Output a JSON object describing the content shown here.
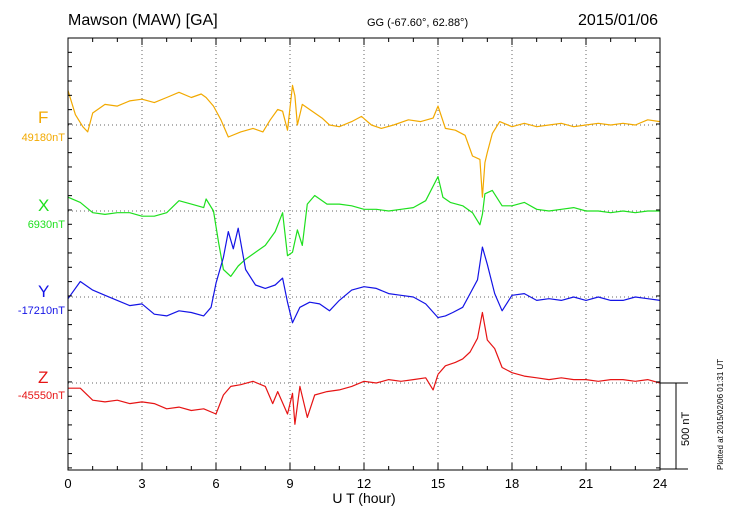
{
  "header": {
    "station": "Mawson (MAW)  [GA]",
    "coords": "GG (-67.60°,  62.88°)",
    "date": "2015/01/06"
  },
  "plotted_note": "Plotted at 2015/02/06 01:31  UT",
  "scale_label": "500 nT",
  "chart_data": {
    "type": "line",
    "xlabel": "U T (hour)",
    "xlim": [
      0,
      24
    ],
    "xticks": [
      0,
      3,
      6,
      9,
      12,
      15,
      18,
      21,
      24
    ],
    "grid": true,
    "scale_bar_nT": 500,
    "series": [
      {
        "name": "F",
        "baseline_label": "49180nT",
        "color": "#f2a900",
        "baseline_nT": 0,
        "values": [
          [
            0,
            200
          ],
          [
            0.3,
            60
          ],
          [
            0.6,
            -10
          ],
          [
            0.8,
            -40
          ],
          [
            1.0,
            70
          ],
          [
            1.5,
            120
          ],
          [
            2.0,
            110
          ],
          [
            2.5,
            140
          ],
          [
            3.0,
            150
          ],
          [
            3.5,
            130
          ],
          [
            4.0,
            160
          ],
          [
            4.5,
            190
          ],
          [
            5.0,
            160
          ],
          [
            5.4,
            180
          ],
          [
            5.6,
            160
          ],
          [
            5.9,
            110
          ],
          [
            6.2,
            30
          ],
          [
            6.5,
            -70
          ],
          [
            7.0,
            -40
          ],
          [
            7.5,
            -20
          ],
          [
            7.9,
            -40
          ],
          [
            8.2,
            30
          ],
          [
            8.5,
            90
          ],
          [
            8.7,
            80
          ],
          [
            8.9,
            -30
          ],
          [
            9.1,
            230
          ],
          [
            9.2,
            170
          ],
          [
            9.3,
            0
          ],
          [
            9.5,
            120
          ],
          [
            9.9,
            80
          ],
          [
            10.3,
            40
          ],
          [
            10.6,
            0
          ],
          [
            11.0,
            -10
          ],
          [
            11.5,
            20
          ],
          [
            11.9,
            50
          ],
          [
            12.3,
            0
          ],
          [
            12.7,
            -20
          ],
          [
            13.2,
            0
          ],
          [
            13.8,
            30
          ],
          [
            14.3,
            20
          ],
          [
            14.8,
            40
          ],
          [
            15.0,
            110
          ],
          [
            15.3,
            -20
          ],
          [
            15.7,
            -30
          ],
          [
            16.1,
            -60
          ],
          [
            16.4,
            -180
          ],
          [
            16.7,
            -200
          ],
          [
            16.8,
            -420
          ],
          [
            16.9,
            -220
          ],
          [
            17.0,
            -160
          ],
          [
            17.2,
            -50
          ],
          [
            17.5,
            20
          ],
          [
            18.0,
            -10
          ],
          [
            18.5,
            10
          ],
          [
            19.0,
            -10
          ],
          [
            19.5,
            0
          ],
          [
            20.0,
            10
          ],
          [
            20.5,
            -10
          ],
          [
            21.0,
            0
          ],
          [
            21.5,
            10
          ],
          [
            22.0,
            0
          ],
          [
            22.5,
            10
          ],
          [
            23.0,
            0
          ],
          [
            23.5,
            30
          ],
          [
            24.0,
            20
          ]
        ]
      },
      {
        "name": "X",
        "baseline_label": "6930nT",
        "color": "#1ee01e",
        "baseline_nT": 0,
        "values": [
          [
            0,
            80
          ],
          [
            0.5,
            50
          ],
          [
            1.0,
            -10
          ],
          [
            1.5,
            -20
          ],
          [
            2.0,
            -10
          ],
          [
            2.5,
            -10
          ],
          [
            3.0,
            -30
          ],
          [
            3.5,
            -30
          ],
          [
            4.0,
            -10
          ],
          [
            4.5,
            60
          ],
          [
            5.0,
            40
          ],
          [
            5.5,
            20
          ],
          [
            5.6,
            70
          ],
          [
            5.9,
            0
          ],
          [
            6.1,
            -180
          ],
          [
            6.3,
            -340
          ],
          [
            6.6,
            -380
          ],
          [
            6.9,
            -320
          ],
          [
            7.2,
            -280
          ],
          [
            7.6,
            -240
          ],
          [
            8.0,
            -200
          ],
          [
            8.4,
            -120
          ],
          [
            8.7,
            -10
          ],
          [
            8.9,
            -260
          ],
          [
            9.1,
            -240
          ],
          [
            9.3,
            -110
          ],
          [
            9.5,
            -200
          ],
          [
            9.7,
            40
          ],
          [
            10.0,
            90
          ],
          [
            10.5,
            40
          ],
          [
            11.0,
            40
          ],
          [
            11.5,
            30
          ],
          [
            12.0,
            10
          ],
          [
            12.5,
            10
          ],
          [
            13.0,
            0
          ],
          [
            13.5,
            10
          ],
          [
            14.0,
            20
          ],
          [
            14.5,
            60
          ],
          [
            15.0,
            200
          ],
          [
            15.2,
            80
          ],
          [
            15.5,
            50
          ],
          [
            16.0,
            30
          ],
          [
            16.4,
            -10
          ],
          [
            16.7,
            -80
          ],
          [
            16.8,
            -20
          ],
          [
            16.9,
            100
          ],
          [
            17.2,
            120
          ],
          [
            17.6,
            30
          ],
          [
            18.0,
            30
          ],
          [
            18.5,
            50
          ],
          [
            19.0,
            10
          ],
          [
            19.5,
            0
          ],
          [
            20.0,
            10
          ],
          [
            20.5,
            20
          ],
          [
            21.0,
            0
          ],
          [
            21.5,
            0
          ],
          [
            22.0,
            -10
          ],
          [
            22.5,
            0
          ],
          [
            23.0,
            -10
          ],
          [
            23.5,
            0
          ],
          [
            24.0,
            0
          ]
        ]
      },
      {
        "name": "Y",
        "baseline_label": "-17210nT",
        "color": "#1414e6",
        "baseline_nT": 0,
        "values": [
          [
            0,
            -10
          ],
          [
            0.5,
            90
          ],
          [
            1.0,
            40
          ],
          [
            1.5,
            10
          ],
          [
            2.0,
            -20
          ],
          [
            2.5,
            -50
          ],
          [
            3.0,
            -40
          ],
          [
            3.5,
            -100
          ],
          [
            4.0,
            -110
          ],
          [
            4.5,
            -80
          ],
          [
            5.0,
            -90
          ],
          [
            5.5,
            -110
          ],
          [
            5.8,
            -60
          ],
          [
            6.0,
            80
          ],
          [
            6.3,
            230
          ],
          [
            6.5,
            380
          ],
          [
            6.7,
            280
          ],
          [
            6.9,
            400
          ],
          [
            7.2,
            160
          ],
          [
            7.6,
            70
          ],
          [
            8.0,
            50
          ],
          [
            8.4,
            70
          ],
          [
            8.7,
            110
          ],
          [
            8.9,
            -30
          ],
          [
            9.1,
            -150
          ],
          [
            9.4,
            -60
          ],
          [
            9.8,
            -30
          ],
          [
            10.2,
            -40
          ],
          [
            10.6,
            -80
          ],
          [
            11.0,
            -20
          ],
          [
            11.5,
            40
          ],
          [
            12.0,
            60
          ],
          [
            12.5,
            50
          ],
          [
            13.0,
            20
          ],
          [
            13.5,
            10
          ],
          [
            14.0,
            0
          ],
          [
            14.5,
            -40
          ],
          [
            15.0,
            -120
          ],
          [
            15.3,
            -110
          ],
          [
            15.6,
            -90
          ],
          [
            16.0,
            -60
          ],
          [
            16.3,
            20
          ],
          [
            16.6,
            100
          ],
          [
            16.8,
            290
          ],
          [
            17.0,
            190
          ],
          [
            17.3,
            20
          ],
          [
            17.6,
            -80
          ],
          [
            18.0,
            10
          ],
          [
            18.5,
            20
          ],
          [
            19.0,
            -20
          ],
          [
            19.5,
            -10
          ],
          [
            20.0,
            -20
          ],
          [
            20.5,
            0
          ],
          [
            21.0,
            -20
          ],
          [
            21.5,
            0
          ],
          [
            22.0,
            -20
          ],
          [
            22.5,
            -20
          ],
          [
            23.0,
            0
          ],
          [
            23.5,
            -10
          ],
          [
            24.0,
            -20
          ]
        ]
      },
      {
        "name": "Z",
        "baseline_label": "-45550nT",
        "color": "#e61414",
        "baseline_nT": 0,
        "values": [
          [
            0,
            -30
          ],
          [
            0.5,
            -30
          ],
          [
            1.0,
            -100
          ],
          [
            1.5,
            -110
          ],
          [
            2.0,
            -100
          ],
          [
            2.5,
            -120
          ],
          [
            3.0,
            -110
          ],
          [
            3.5,
            -120
          ],
          [
            4.0,
            -150
          ],
          [
            4.5,
            -140
          ],
          [
            5.0,
            -160
          ],
          [
            5.5,
            -150
          ],
          [
            6.0,
            -180
          ],
          [
            6.3,
            -70
          ],
          [
            6.6,
            -20
          ],
          [
            7.0,
            -10
          ],
          [
            7.5,
            10
          ],
          [
            8.0,
            -20
          ],
          [
            8.3,
            -120
          ],
          [
            8.5,
            -50
          ],
          [
            8.9,
            -180
          ],
          [
            9.1,
            -60
          ],
          [
            9.2,
            -240
          ],
          [
            9.4,
            -20
          ],
          [
            9.7,
            -200
          ],
          [
            10.0,
            -70
          ],
          [
            10.5,
            -50
          ],
          [
            11.0,
            -40
          ],
          [
            11.5,
            -20
          ],
          [
            12.0,
            10
          ],
          [
            12.5,
            0
          ],
          [
            13.0,
            20
          ],
          [
            13.5,
            10
          ],
          [
            14.0,
            20
          ],
          [
            14.5,
            30
          ],
          [
            14.8,
            -40
          ],
          [
            15.0,
            50
          ],
          [
            15.3,
            100
          ],
          [
            15.7,
            120
          ],
          [
            16.0,
            140
          ],
          [
            16.3,
            180
          ],
          [
            16.6,
            260
          ],
          [
            16.8,
            410
          ],
          [
            17.0,
            250
          ],
          [
            17.3,
            200
          ],
          [
            17.6,
            90
          ],
          [
            18.0,
            60
          ],
          [
            18.5,
            40
          ],
          [
            19.0,
            30
          ],
          [
            19.5,
            20
          ],
          [
            20.0,
            30
          ],
          [
            20.5,
            20
          ],
          [
            21.0,
            20
          ],
          [
            21.5,
            10
          ],
          [
            22.0,
            20
          ],
          [
            22.5,
            20
          ],
          [
            23.0,
            10
          ],
          [
            23.5,
            20
          ],
          [
            24.0,
            0
          ]
        ]
      }
    ]
  }
}
